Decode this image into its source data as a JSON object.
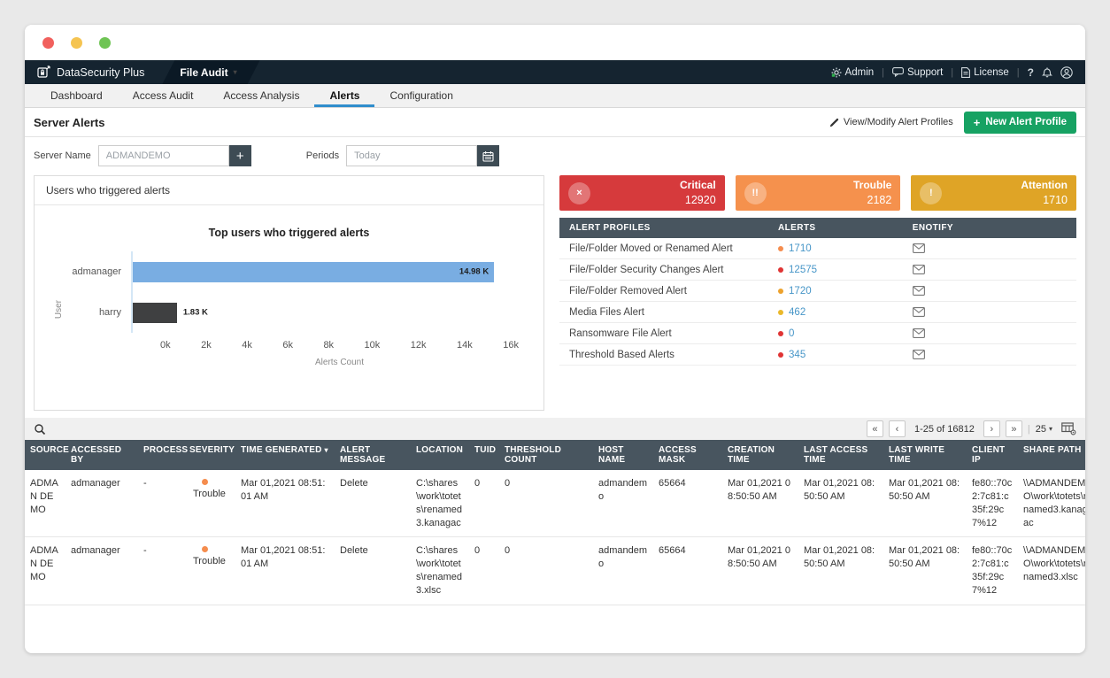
{
  "window": {
    "traffic_lights": [
      "#f1605d",
      "#f5c451",
      "#6fc454"
    ]
  },
  "navbar": {
    "brand": "DataSecurity Plus",
    "module": "File Audit",
    "module_caret": "▾",
    "links": [
      "Admin",
      "Support",
      "License"
    ]
  },
  "tabs": [
    {
      "label": "Dashboard",
      "active": false
    },
    {
      "label": "Access Audit",
      "active": false
    },
    {
      "label": "Access Analysis",
      "active": false
    },
    {
      "label": "Alerts",
      "active": true
    },
    {
      "label": "Configuration",
      "active": false
    }
  ],
  "page_header": {
    "title": "Server Alerts",
    "view_modify": "View/Modify Alert Profiles",
    "new_profile": "New Alert Profile",
    "new_profile_color": "#17a263"
  },
  "filters": {
    "server_name_label": "Server Name",
    "server_name_value": "ADMANDEMO",
    "periods_label": "Periods",
    "periods_value": "Today"
  },
  "chart_panel_title": "Users who triggered alerts",
  "chart_data": {
    "type": "bar",
    "orientation": "horizontal",
    "title": "Top users who triggered alerts",
    "categories": [
      "admanager",
      "harry"
    ],
    "values": [
      14980,
      1830
    ],
    "value_labels": [
      "14.98 K",
      "1.83 K"
    ],
    "bar_colors": [
      "#79ade2",
      "#3f4041"
    ],
    "xlabel": "Alerts Count",
    "ylabel": "User",
    "xlim": [
      0,
      16000
    ],
    "xticks": [
      "0k",
      "2k",
      "4k",
      "6k",
      "8k",
      "10k",
      "12k",
      "14k",
      "16k"
    ],
    "grid": false,
    "legend": false
  },
  "severity_cards": [
    {
      "label": "Critical",
      "count": "12920",
      "color": "#d63a3c",
      "glyph": "×"
    },
    {
      "label": "Trouble",
      "count": "2182",
      "color": "#f5914d",
      "glyph": "!!"
    },
    {
      "label": "Attention",
      "count": "1710",
      "color": "#dfa426",
      "glyph": "!"
    }
  ],
  "alert_profiles": {
    "headers": [
      "ALERT PROFILES",
      "ALERTS",
      "ENOTIFY"
    ],
    "rows": [
      {
        "name": "File/Folder Moved or Renamed Alert",
        "count": "1710",
        "dot": "#f58d4e"
      },
      {
        "name": "File/Folder Security Changes Alert",
        "count": "12575",
        "dot": "#e03434"
      },
      {
        "name": "File/Folder Removed Alert",
        "count": "1720",
        "dot": "#eda22d"
      },
      {
        "name": "Media Files Alert",
        "count": "462",
        "dot": "#eab82a"
      },
      {
        "name": "Ransomware File Alert",
        "count": "0",
        "dot": "#e03434"
      },
      {
        "name": "Threshold Based Alerts",
        "count": "345",
        "dot": "#e03434"
      }
    ]
  },
  "pagination": {
    "first": "«",
    "prev": "‹",
    "range": "1-25 of 16812",
    "next": "›",
    "last": "»",
    "page_size": "25",
    "size_caret": "▾"
  },
  "events_table": {
    "sorted_header": "TIME GENERATED",
    "sort_glyph": "▾",
    "headers": [
      "SOURCE",
      "ACCESSED BY",
      "PROCESS",
      "SEVERITY",
      "TIME GENERATED",
      "ALERT MESSAGE",
      "LOCATION",
      "TUID",
      "THRESHOLD COUNT",
      "HOST NAME",
      "ACCESS MASK",
      "CREATION TIME",
      "LAST ACCESS TIME",
      "LAST WRITE TIME",
      "CLIENT IP",
      "SHARE PATH"
    ],
    "rows": [
      {
        "cells": [
          "ADMAN DEMO",
          "admanager",
          "-",
          {
            "text": "Trouble",
            "dot": "#f58d4e"
          },
          "Mar 01,2021 08:51:01 AM",
          "Delete",
          "C:\\shares\\work\\totets\\renamed3.kanagac",
          "0",
          "0",
          "admandemo",
          "65664",
          "Mar 01,2021 08:50:50 AM",
          "Mar 01,2021 08:50:50 AM",
          "Mar 01,2021 08:50:50 AM",
          "fe80::70c2:7c81:c35f:29c7%12",
          "\\\\ADMANDEMO\\work\\totets\\renamed3.kanagac"
        ]
      },
      {
        "cells": [
          "ADMAN DEMO",
          "admanager",
          "-",
          {
            "text": "Trouble",
            "dot": "#f58d4e"
          },
          "Mar 01,2021 08:51:01 AM",
          "Delete",
          "C:\\shares\\work\\totets\\renamed3.xlsc",
          "0",
          "0",
          "admandemo",
          "65664",
          "Mar 01,2021 08:50:50 AM",
          "Mar 01,2021 08:50:50 AM",
          "Mar 01,2021 08:50:50 AM",
          "fe80::70c2:7c81:c35f:29c7%12",
          "\\\\ADMANDEMO\\work\\totets\\renamed3.xlsc"
        ]
      }
    ]
  }
}
